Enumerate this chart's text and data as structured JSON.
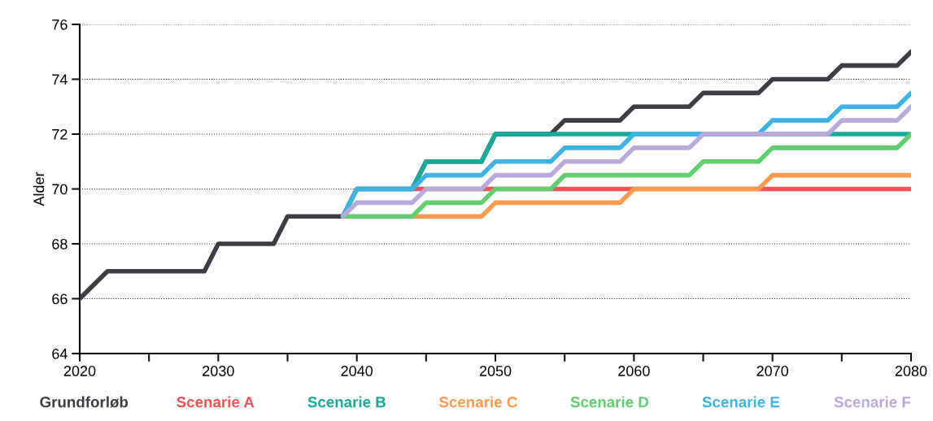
{
  "chart_data": {
    "type": "line",
    "ylabel": "Alder",
    "xlim": [
      2020,
      2080
    ],
    "ylim": [
      64,
      76
    ],
    "xticks": [
      2020,
      {
        "value": 2025,
        "label": null
      },
      2030,
      {
        "value": 2035,
        "label": null
      },
      2040,
      {
        "value": 2045,
        "label": null
      },
      2050,
      {
        "value": 2055,
        "label": null
      },
      2060,
      {
        "value": 2065,
        "label": null
      },
      2070,
      {
        "value": 2075,
        "label": null
      },
      2080
    ],
    "yticks": [
      64,
      66,
      68,
      70,
      72,
      74,
      76
    ],
    "grid": "y",
    "legend": "bottom",
    "marker": "none",
    "line_style": "solid",
    "series": [
      {
        "name": "Grundforløb",
        "color": "#3d3d45",
        "x": [
          2020,
          2022,
          2029,
          2030,
          2034,
          2035,
          2039,
          2040,
          2044,
          2045,
          2049,
          2050,
          2054,
          2055,
          2059,
          2060,
          2064,
          2065,
          2069,
          2070,
          2074,
          2075,
          2079,
          2080
        ],
        "values": [
          66,
          67,
          67,
          68,
          68,
          69,
          69,
          70,
          70,
          71,
          71,
          72,
          72,
          72.5,
          72.5,
          73,
          73,
          73.5,
          73.5,
          74,
          74,
          74.5,
          74.5,
          75
        ]
      },
      {
        "name": "Scenarie A",
        "color": "#ee5252",
        "x": [
          2044,
          2080
        ],
        "values": [
          70,
          70
        ]
      },
      {
        "name": "Scenarie B",
        "color": "#17a99a",
        "x": [
          2039,
          2040,
          2044,
          2045,
          2049,
          2050,
          2080
        ],
        "values": [
          69,
          70,
          70,
          71,
          71,
          72,
          72
        ]
      },
      {
        "name": "Scenarie C",
        "color": "#ff9a4d",
        "x": [
          2044,
          2049,
          2050,
          2059,
          2060,
          2069,
          2070,
          2080
        ],
        "values": [
          69,
          69,
          69.5,
          69.5,
          70,
          70,
          70.5,
          70.5
        ]
      },
      {
        "name": "Scenarie D",
        "color": "#5fcf6e",
        "x": [
          2039,
          2044,
          2045,
          2049,
          2050,
          2054,
          2055,
          2064,
          2065,
          2069,
          2070,
          2079,
          2080
        ],
        "values": [
          69,
          69,
          69.5,
          69.5,
          70,
          70,
          70.5,
          70.5,
          71,
          71,
          71.5,
          71.5,
          72
        ]
      },
      {
        "name": "Scenarie E",
        "color": "#3db3e3",
        "x": [
          2039,
          2040,
          2044,
          2045,
          2049,
          2050,
          2054,
          2055,
          2059,
          2060,
          2069,
          2070,
          2074,
          2075,
          2079,
          2080
        ],
        "values": [
          69,
          70,
          70,
          70.5,
          70.5,
          71,
          71,
          71.5,
          71.5,
          72,
          72,
          72.5,
          72.5,
          73,
          73,
          73.5
        ]
      },
      {
        "name": "Scenarie F",
        "color": "#b9a9dc",
        "x": [
          2039,
          2040,
          2044,
          2045,
          2049,
          2050,
          2054,
          2055,
          2059,
          2060,
          2064,
          2065,
          2074,
          2075,
          2079,
          2080
        ],
        "values": [
          69,
          69.5,
          69.5,
          70,
          70,
          70.5,
          70.5,
          71,
          71,
          71.5,
          71.5,
          72,
          72,
          72.5,
          72.5,
          73
        ]
      }
    ]
  }
}
